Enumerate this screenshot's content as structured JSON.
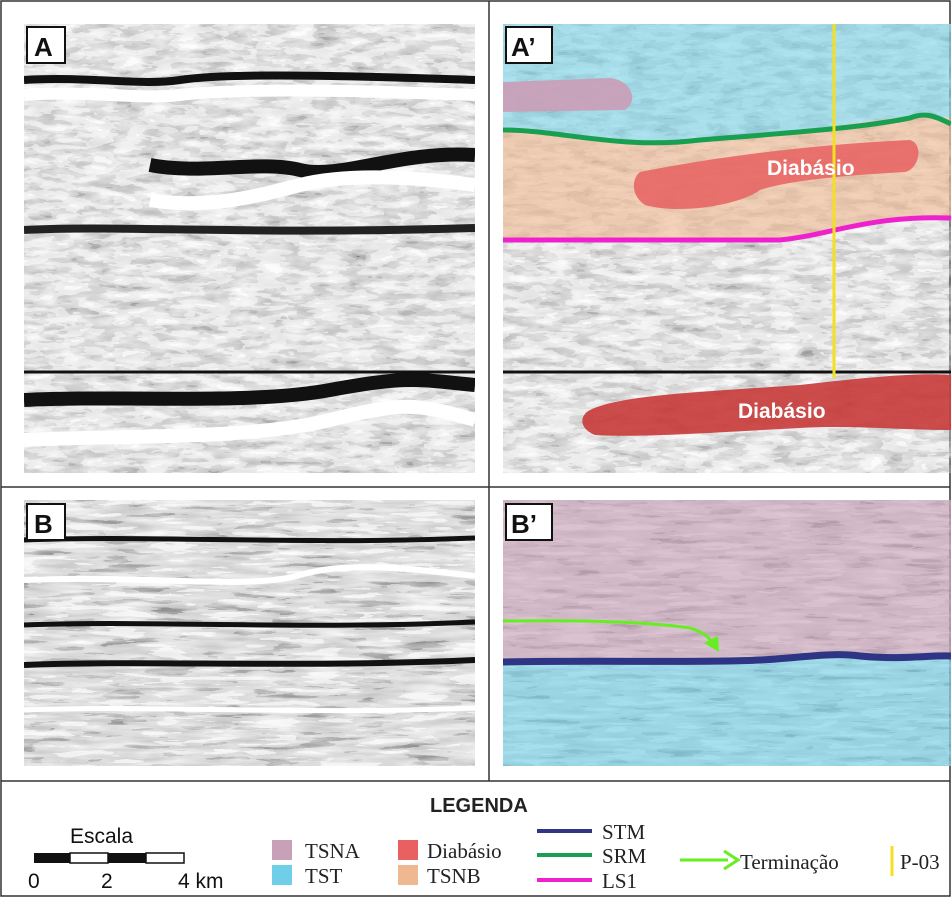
{
  "panels": {
    "a": "A",
    "a_prime": "A’",
    "b": "B",
    "b_prime": "B’"
  },
  "annotations": {
    "diabasio_upper": "Diabásio",
    "diabasio_lower": "Diabásio"
  },
  "legend": {
    "title": "LEGENDA",
    "scale": {
      "title": "Escala",
      "ticks": [
        "0",
        "2",
        "4 km"
      ]
    },
    "units": [
      {
        "name": "TSNA",
        "color": "#c8a0b8"
      },
      {
        "name": "TST",
        "color": "#6fcfe8"
      },
      {
        "name": "Diabásio",
        "color": "#e86060"
      },
      {
        "name": "TSNB",
        "color": "#f0b890"
      }
    ],
    "lines": [
      {
        "name": "STM",
        "color": "#2e3585"
      },
      {
        "name": "SRM",
        "color": "#18a050"
      },
      {
        "name": "LS1",
        "color": "#ee22cc"
      }
    ],
    "termination": {
      "name": "Terminação",
      "color": "#66ee22"
    },
    "well": {
      "name": "P-03",
      "color": "#f4e020"
    }
  }
}
